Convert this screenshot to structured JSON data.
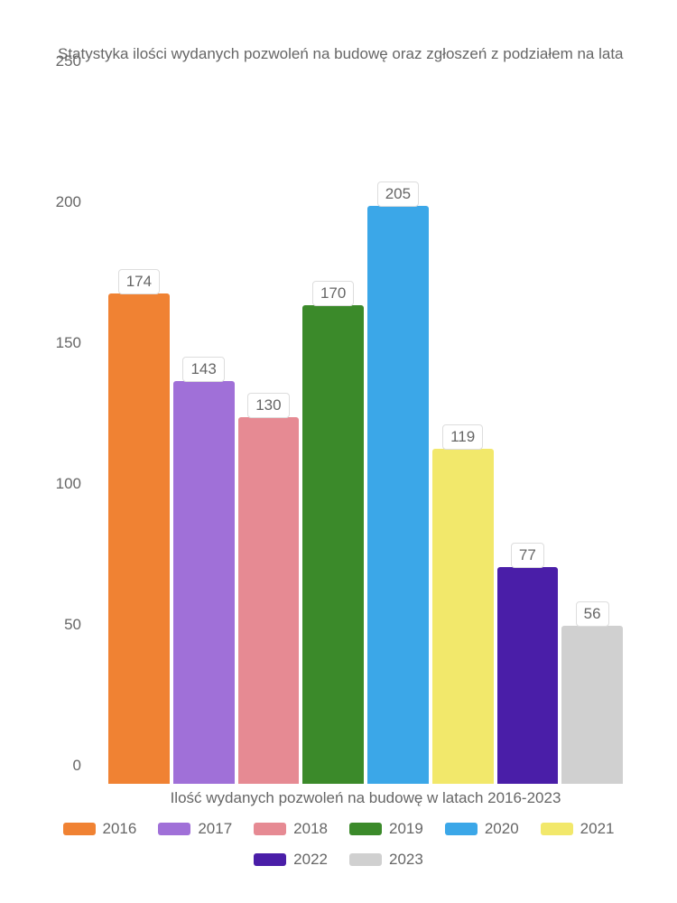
{
  "chart": {
    "type": "bar",
    "title": "Statystyka ilości wydanych pozwoleń na budowę oraz zgłoszeń z podziałem na lata",
    "x_label": "Ilość wydanych pozwoleń na budowę w latach 2016-2023",
    "ylim": [
      0,
      250
    ],
    "ytick_step": 50,
    "yticks": [
      "0",
      "50",
      "100",
      "150",
      "200",
      "250"
    ],
    "background_color": "#ffffff",
    "text_color": "#666666",
    "title_fontsize": 17,
    "label_fontsize": 17,
    "tick_fontsize": 17,
    "bar_gap": 4,
    "bars": [
      {
        "year": "2016",
        "value": 174,
        "color": "#f08233"
      },
      {
        "year": "2017",
        "value": 143,
        "color": "#a070d8"
      },
      {
        "year": "2018",
        "value": 130,
        "color": "#e68a93"
      },
      {
        "year": "2019",
        "value": 170,
        "color": "#3b8a2a"
      },
      {
        "year": "2020",
        "value": 205,
        "color": "#3ba7e8"
      },
      {
        "year": "2021",
        "value": 119,
        "color": "#f2e86b"
      },
      {
        "year": "2022",
        "value": 77,
        "color": "#4a1ea8"
      },
      {
        "year": "2023",
        "value": 56,
        "color": "#d0d0d0"
      }
    ],
    "value_label_bg": "#ffffff",
    "value_label_border": "#dddddd"
  }
}
